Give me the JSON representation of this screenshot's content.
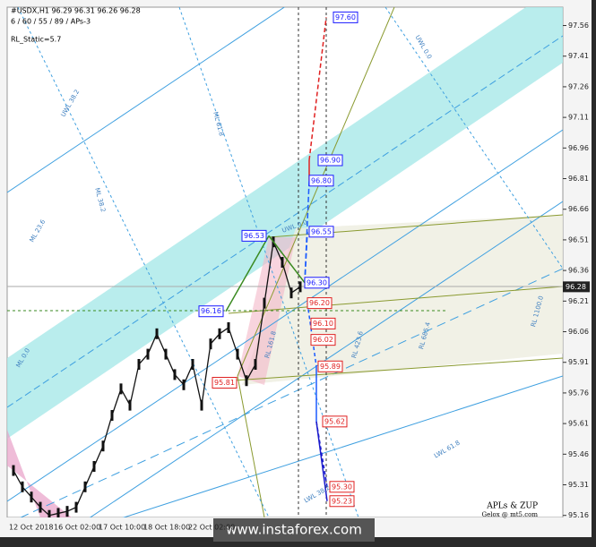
{
  "header": {
    "symbol_line": "#USDX,H1  96.29 96.31 96.26 96.28",
    "indicator": "6 / 60 / 55 / 89 / APs-3",
    "param": "RL_Static=5.7"
  },
  "chart_data": {
    "type": "line",
    "categories": [
      null,
      "12 Oct 2018",
      null,
      null,
      null,
      null,
      "16 Oct 02:00",
      null,
      null,
      null,
      null,
      "17 Oct 10:00",
      null,
      null,
      null,
      null,
      "18 Oct 18:00",
      null,
      null,
      null,
      null,
      "22 Oct 02:00",
      null,
      null,
      null,
      null,
      null,
      null,
      null,
      null,
      null,
      null,
      null
    ],
    "values": [
      95.38,
      95.3,
      95.25,
      95.2,
      95.16,
      95.17,
      95.18,
      95.2,
      95.3,
      95.4,
      95.5,
      95.65,
      95.78,
      95.7,
      95.9,
      95.95,
      96.05,
      95.95,
      95.85,
      95.8,
      95.9,
      95.7,
      96.0,
      96.05,
      96.08,
      95.95,
      95.82,
      95.9,
      96.2,
      96.5,
      96.4,
      96.25,
      96.28
    ],
    "color": "#111111",
    "ylim": [
      95.15,
      97.65
    ],
    "yticks": [
      97.56,
      97.41,
      97.26,
      97.11,
      96.96,
      96.81,
      96.66,
      96.51,
      96.36,
      96.21,
      96.06,
      95.91,
      95.76,
      95.61,
      95.46,
      95.31,
      95.16
    ],
    "current_price": 96.28,
    "levels": [
      {
        "value": 97.6,
        "label": "97.60",
        "color": "#1a1aff"
      },
      {
        "value": 96.9,
        "label": "96.90",
        "color": "#1a1aff"
      },
      {
        "value": 96.8,
        "label": "96.80",
        "color": "#1a1aff"
      },
      {
        "value": 96.55,
        "label": "96.55",
        "color": "#1a1aff"
      },
      {
        "value": 96.53,
        "label": "96.53",
        "color": "#1a1aff"
      },
      {
        "value": 96.3,
        "label": "96.30",
        "color": "#1a1aff"
      },
      {
        "value": 96.16,
        "label": "96.16",
        "color": "#1a1aff"
      },
      {
        "value": 96.2,
        "label": "96.20",
        "color": "#e02020"
      },
      {
        "value": 96.1,
        "label": "96.10",
        "color": "#e02020"
      },
      {
        "value": 96.02,
        "label": "96.02",
        "color": "#e02020"
      },
      {
        "value": 95.89,
        "label": "95.89",
        "color": "#e02020"
      },
      {
        "value": 95.81,
        "label": "95.81",
        "color": "#e02020"
      },
      {
        "value": 95.62,
        "label": "95.62",
        "color": "#e02020"
      },
      {
        "value": 95.3,
        "label": "95.30",
        "color": "#e02020"
      },
      {
        "value": 95.23,
        "label": "95.23",
        "color": "#e02020"
      }
    ],
    "line_labels": [
      "UWL 38.2",
      "ML 61.8",
      "ML 38.2",
      "ML 23.6",
      "ML 0.0",
      "UWL 0.0",
      "RL 161.8",
      "RL 423.6",
      "RL 685.4",
      "RL 1100.0",
      "LWL 61.8",
      "LWL 38.2",
      "UWL 0.0"
    ],
    "credits": [
      "APLs & ZUP",
      "Gelox @ mt5.com"
    ],
    "watermark": "www.instaforex.com"
  }
}
